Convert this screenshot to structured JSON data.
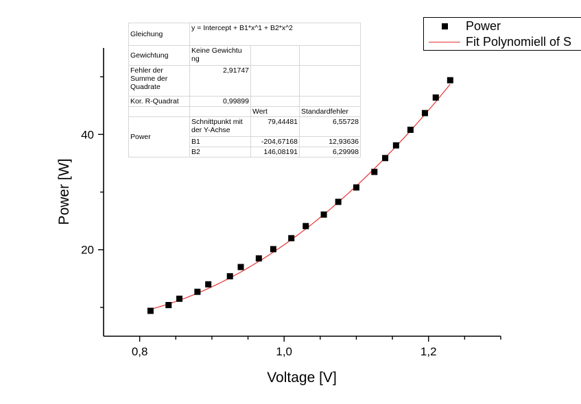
{
  "chart_data": {
    "type": "scatter",
    "xlabel": "Voltage [V]",
    "ylabel": "Power [W]",
    "xlim": [
      0.75,
      1.3
    ],
    "ylim": [
      5,
      55
    ],
    "x_ticks": [
      0.8,
      1.0,
      1.2
    ],
    "x_tick_labels": [
      "0,8",
      "1,0",
      "1,2"
    ],
    "y_ticks": [
      20,
      40
    ],
    "y_tick_labels": [
      "20",
      "40"
    ],
    "grid": false,
    "legend_position": "top-right",
    "series": [
      {
        "name": "Power",
        "kind": "scatter",
        "marker": "square",
        "color": "#000000",
        "x": [
          0.815,
          0.84,
          0.855,
          0.88,
          0.895,
          0.925,
          0.94,
          0.965,
          0.985,
          1.01,
          1.03,
          1.055,
          1.075,
          1.1,
          1.125,
          1.14,
          1.155,
          1.175,
          1.195,
          1.21,
          1.23
        ],
        "y": [
          9.4,
          10.4,
          11.5,
          12.7,
          14.0,
          15.4,
          17.0,
          18.5,
          20.1,
          22.0,
          24.1,
          26.1,
          28.3,
          30.8,
          33.5,
          35.9,
          38.1,
          40.8,
          43.7,
          46.4,
          49.4
        ]
      },
      {
        "name": "Fit Polynomiell of S",
        "kind": "line",
        "color": "#e83030",
        "equation": {
          "intercept": 79.44481,
          "b1": -204.67168,
          "b2": 146.08191
        },
        "x_range": [
          0.815,
          1.23
        ]
      }
    ]
  },
  "stats_table": {
    "equation_label": "Gleichung",
    "equation_value": "y = Intercept + B1*x^1 + B2*x^2",
    "weighting_label": "Gewichtung",
    "weighting_value": "Keine Gewichtu ng",
    "sse_label": "Fehler der Summe der Quadrate",
    "sse_value": "2,91747",
    "r2_label": "Kor. R-Quadrat",
    "r2_value": "0,99899",
    "col_value": "Wert",
    "col_error": "Standardfehler",
    "group_label": "Power",
    "rows": [
      {
        "name": "Schnittpunkt mit der Y-Achse",
        "value": "79,44481",
        "error": "6,55728"
      },
      {
        "name": "B1",
        "value": "-204,67168",
        "error": "12,93636"
      },
      {
        "name": "B2",
        "value": "146,08191",
        "error": "6,29998"
      }
    ]
  },
  "legend": {
    "scatter_label": "Power",
    "line_label": "Fit Polynomiell of S"
  }
}
